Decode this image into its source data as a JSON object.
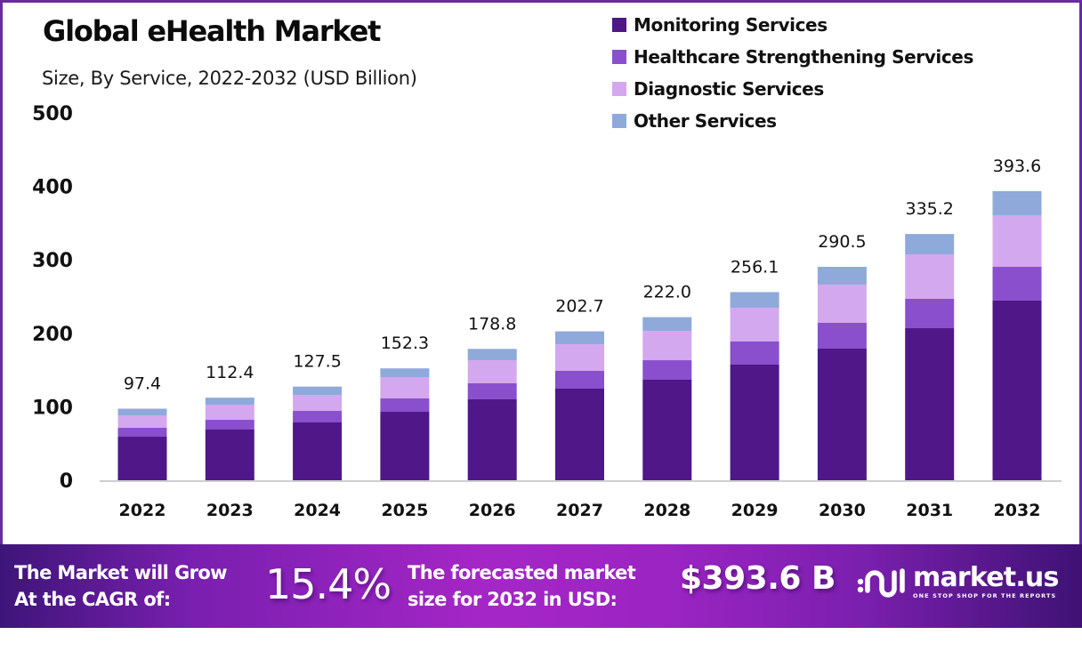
{
  "title": "Global eHealth Market",
  "subtitle": "Size, By Service, 2022-2032 (USD Billion)",
  "chart_data": {
    "type": "bar",
    "stacked": true,
    "title": "Global eHealth Market",
    "subtitle": "Size, By Service, 2022-2032 (USD Billion)",
    "xlabel": "",
    "ylabel": "USD Billion",
    "ylim": [
      0,
      500
    ],
    "yticks": [
      0,
      100,
      200,
      300,
      400,
      500
    ],
    "grid": false,
    "legend_position": "top-right",
    "categories": [
      "2022",
      "2023",
      "2024",
      "2025",
      "2026",
      "2027",
      "2028",
      "2029",
      "2030",
      "2031",
      "2032"
    ],
    "series": [
      {
        "name": "Monitoring Services",
        "color": "#4f1787",
        "values": [
          59.3,
          69.0,
          78.7,
          93.2,
          110.2,
          124.7,
          136.8,
          157.4,
          179.2,
          207.0,
          244.6
        ]
      },
      {
        "name": "Healthcare Strengthening Services",
        "color": "#8a4fcc",
        "values": [
          12.1,
          13.3,
          15.7,
          18.2,
          21.8,
          24.2,
          26.6,
          31.5,
          35.1,
          40.0,
          46.0
        ]
      },
      {
        "name": "Diagnostic Services",
        "color": "#d4a8ee",
        "values": [
          17.0,
          20.6,
          21.8,
          29.0,
          31.5,
          36.3,
          40.0,
          46.0,
          52.0,
          60.5,
          70.2
        ]
      },
      {
        "name": "Other Services",
        "color": "#8fa9db",
        "values": [
          9.0,
          9.5,
          11.3,
          11.9,
          15.3,
          17.5,
          18.6,
          21.2,
          24.2,
          27.7,
          32.8
        ]
      }
    ],
    "totals": [
      97.4,
      112.4,
      127.5,
      152.3,
      178.8,
      202.7,
      222.0,
      256.1,
      290.5,
      335.2,
      393.6
    ],
    "total_labels": [
      "97.4",
      "112.4",
      "127.5",
      "152.3",
      "178.8",
      "202.7",
      "222.0",
      "256.1",
      "290.5",
      "335.2",
      "393.6"
    ]
  },
  "banner": {
    "cagr_label_line1": "The Market will Grow",
    "cagr_label_line2": "At the CAGR of:",
    "cagr_value": "15.4%",
    "forecast_label_line1": "The forecasted market",
    "forecast_label_line2": "size for 2032 in USD:",
    "forecast_value": "$393.6 B",
    "logo_name": "market.us",
    "logo_tagline": "ONE STOP SHOP FOR THE REPORTS",
    "logo_icon": "market-us-logo-icon"
  }
}
